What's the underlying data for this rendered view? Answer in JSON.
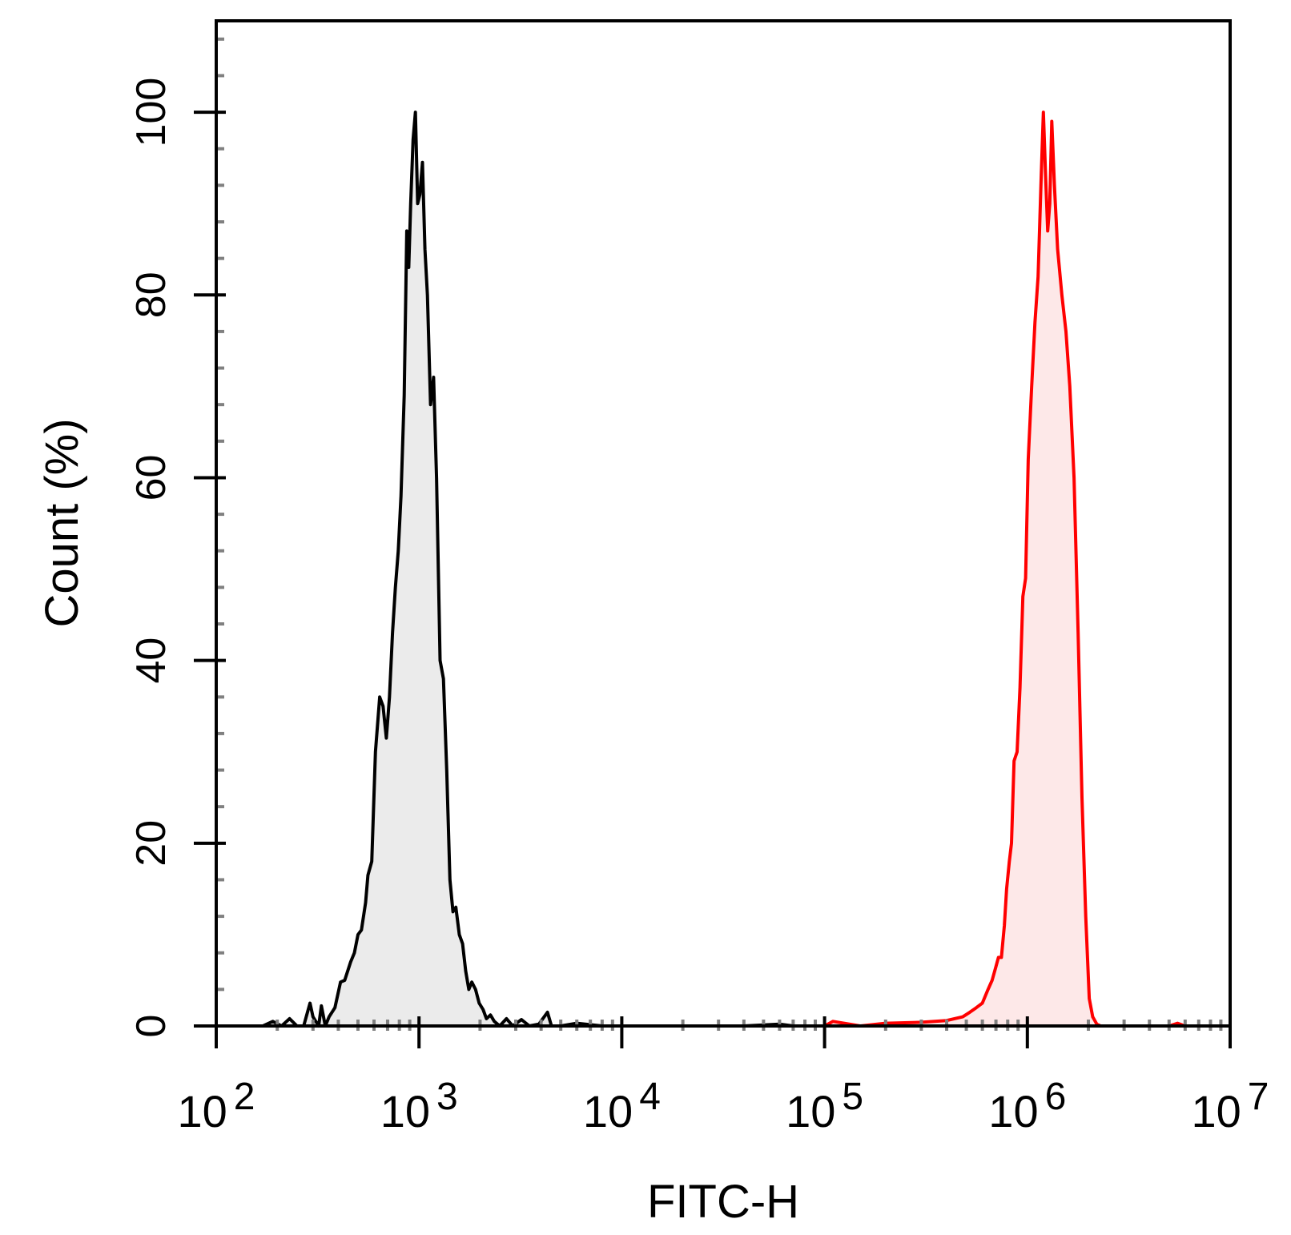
{
  "chart_data": {
    "type": "area",
    "title": "",
    "xlabel": "FITC-H",
    "ylabel": "Count  (%)",
    "xscale": "log",
    "xlim": [
      100,
      10000000
    ],
    "ylim": [
      0,
      110
    ],
    "grid": false,
    "legend": "none",
    "x_ticks": [
      {
        "value": 100,
        "base": "10",
        "exp": "2"
      },
      {
        "value": 1000,
        "base": "10",
        "exp": "3"
      },
      {
        "value": 10000,
        "base": "10",
        "exp": "4"
      },
      {
        "value": 100000,
        "base": "10",
        "exp": "5"
      },
      {
        "value": 1000000,
        "base": "10",
        "exp": "6"
      },
      {
        "value": 10000000,
        "base": "10",
        "exp": "7"
      }
    ],
    "y_ticks": [
      {
        "value": 0,
        "label": "0"
      },
      {
        "value": 20,
        "label": "20"
      },
      {
        "value": 40,
        "label": "40"
      },
      {
        "value": 60,
        "label": "60"
      },
      {
        "value": 80,
        "label": "80"
      },
      {
        "value": 100,
        "label": "100"
      }
    ],
    "series": [
      {
        "stroke": "#000000",
        "fill": "#ebebeb",
        "points": [
          [
            120,
            0
          ],
          [
            170,
            0
          ],
          [
            190,
            0.5
          ],
          [
            210,
            0
          ],
          [
            230,
            0.8
          ],
          [
            250,
            0
          ],
          [
            270,
            0
          ],
          [
            290,
            2.5
          ],
          [
            300,
            1.0
          ],
          [
            320,
            0
          ],
          [
            330,
            2.2
          ],
          [
            345,
            0
          ],
          [
            360,
            1.0
          ],
          [
            385,
            2.0
          ],
          [
            410,
            4.8
          ],
          [
            430,
            5.0
          ],
          [
            460,
            7.0
          ],
          [
            480,
            8.0
          ],
          [
            500,
            10.0
          ],
          [
            520,
            10.5
          ],
          [
            545,
            13.5
          ],
          [
            560,
            16.5
          ],
          [
            585,
            18.0
          ],
          [
            610,
            30.0
          ],
          [
            640,
            36.0
          ],
          [
            665,
            35.0
          ],
          [
            690,
            31.5
          ],
          [
            715,
            36.0
          ],
          [
            740,
            43.0
          ],
          [
            765,
            48.0
          ],
          [
            790,
            52.0
          ],
          [
            815,
            58.0
          ],
          [
            845,
            69.0
          ],
          [
            870,
            87.0
          ],
          [
            890,
            83.0
          ],
          [
            910,
            90.0
          ],
          [
            935,
            97.0
          ],
          [
            960,
            100.0
          ],
          [
            985,
            90.0
          ],
          [
            1010,
            91.0
          ],
          [
            1040,
            94.5
          ],
          [
            1070,
            85.0
          ],
          [
            1100,
            80.0
          ],
          [
            1140,
            68.0
          ],
          [
            1180,
            71.0
          ],
          [
            1220,
            60.0
          ],
          [
            1270,
            40.0
          ],
          [
            1320,
            38.0
          ],
          [
            1370,
            28.0
          ],
          [
            1420,
            16.0
          ],
          [
            1470,
            12.5
          ],
          [
            1520,
            13.0
          ],
          [
            1580,
            10.0
          ],
          [
            1640,
            9.0
          ],
          [
            1700,
            6.0
          ],
          [
            1760,
            4.0
          ],
          [
            1820,
            4.8
          ],
          [
            1900,
            4.0
          ],
          [
            1980,
            2.5
          ],
          [
            2070,
            1.8
          ],
          [
            2150,
            0.8
          ],
          [
            2250,
            1.2
          ],
          [
            2350,
            0.5
          ],
          [
            2500,
            0
          ],
          [
            2700,
            0.8
          ],
          [
            2900,
            0
          ],
          [
            3200,
            0.7
          ],
          [
            3500,
            0
          ],
          [
            3900,
            0.2
          ],
          [
            4300,
            1.5
          ],
          [
            4500,
            0
          ],
          [
            5000,
            0
          ],
          [
            6000,
            0.3
          ],
          [
            8000,
            0
          ],
          [
            12000,
            0
          ],
          [
            20000,
            0
          ],
          [
            40000,
            0
          ],
          [
            60000,
            0.2
          ],
          [
            70000,
            0
          ]
        ]
      },
      {
        "stroke": "#ff0000",
        "fill": "#fde8e8",
        "points": [
          [
            120,
            0
          ],
          [
            400,
            0
          ],
          [
            1000,
            0
          ],
          [
            3000,
            0
          ],
          [
            10000,
            0
          ],
          [
            30000,
            0
          ],
          [
            100000,
            0
          ],
          [
            110000,
            0.5
          ],
          [
            150000,
            0
          ],
          [
            200000,
            0.3
          ],
          [
            300000,
            0.4
          ],
          [
            400000,
            0.6
          ],
          [
            480000,
            1.0
          ],
          [
            520000,
            1.5
          ],
          [
            560000,
            2.0
          ],
          [
            600000,
            2.5
          ],
          [
            640000,
            4.0
          ],
          [
            670000,
            5.0
          ],
          [
            700000,
            6.5
          ],
          [
            720000,
            7.5
          ],
          [
            745000,
            7.5
          ],
          [
            770000,
            11.0
          ],
          [
            790000,
            15.0
          ],
          [
            815000,
            18.0
          ],
          [
            835000,
            20.0
          ],
          [
            860000,
            29.0
          ],
          [
            890000,
            30.0
          ],
          [
            920000,
            37.0
          ],
          [
            950000,
            47.0
          ],
          [
            980000,
            49.0
          ],
          [
            1010000,
            62.0
          ],
          [
            1050000,
            70.0
          ],
          [
            1090000,
            77.0
          ],
          [
            1130000,
            82.0
          ],
          [
            1170000,
            93.0
          ],
          [
            1200000,
            100.0
          ],
          [
            1230000,
            93.0
          ],
          [
            1260000,
            87.0
          ],
          [
            1290000,
            90.0
          ],
          [
            1320000,
            99.0
          ],
          [
            1360000,
            92.0
          ],
          [
            1410000,
            85.0
          ],
          [
            1480000,
            80.0
          ],
          [
            1550000,
            76.0
          ],
          [
            1620000,
            70.0
          ],
          [
            1700000,
            60.0
          ],
          [
            1780000,
            43.0
          ],
          [
            1860000,
            25.0
          ],
          [
            1940000,
            12.0
          ],
          [
            2020000,
            3.0
          ],
          [
            2100000,
            1.0
          ],
          [
            2200000,
            0.2
          ],
          [
            2300000,
            0
          ],
          [
            3000000,
            0
          ],
          [
            5000000,
            0
          ],
          [
            5500000,
            0.3
          ],
          [
            6000000,
            0
          ],
          [
            7000000,
            0
          ]
        ]
      }
    ]
  }
}
